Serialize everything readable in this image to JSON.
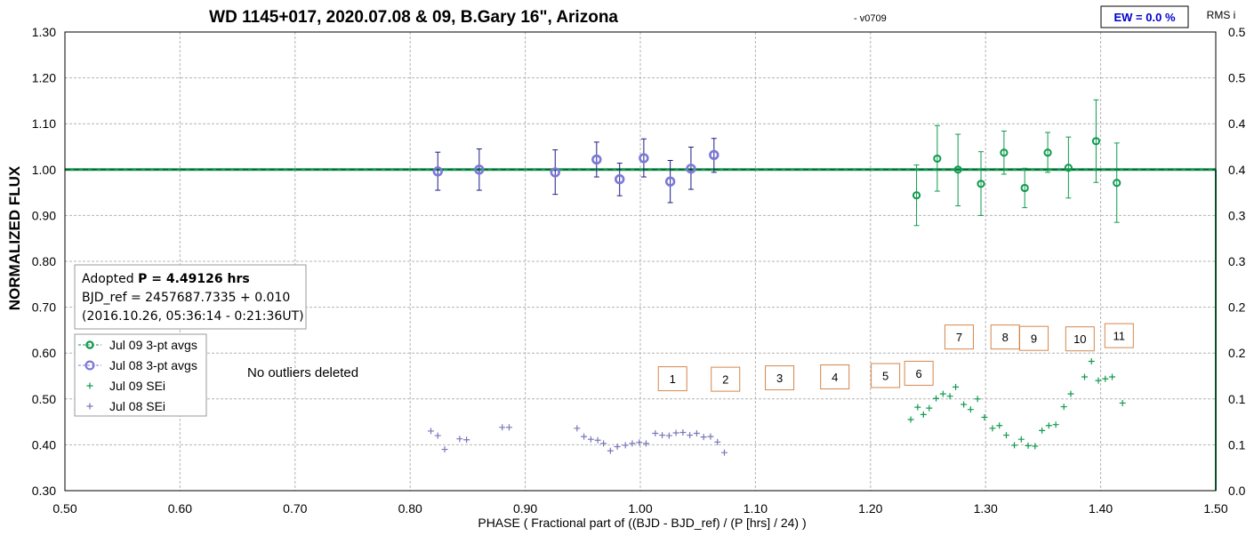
{
  "chart_data": {
    "type": "scatter",
    "title": "WD 1145+017, 2020.07.08 & 09, B.Gary 16\", Arizona",
    "version": "- v0709",
    "xlabel": "PHASE ( Fractional part of ((BJD - BJD_ref) / (P [hrs] / 24) )",
    "ylabel": "NORMALIZED FLUX",
    "y2label": "RMS i",
    "xlim": [
      0.5,
      1.5
    ],
    "ylim": [
      0.3,
      1.3
    ],
    "y2lim": [
      0.0,
      0.5
    ],
    "xticks": [
      "0.50",
      "0.60",
      "0.70",
      "0.80",
      "0.90",
      "1.00",
      "1.10",
      "1.20",
      "1.30",
      "1.40",
      "1.50"
    ],
    "yticks": [
      "0.30",
      "0.40",
      "0.50",
      "0.60",
      "0.70",
      "0.80",
      "0.90",
      "1.00",
      "1.10",
      "1.20",
      "1.30"
    ],
    "y2ticks": [
      "0.0",
      "0.1",
      "0.1",
      "0.2",
      "0.2",
      "0.3",
      "0.3",
      "0.4",
      "0.4",
      "0.5",
      "0.5"
    ],
    "grid": true,
    "legend_position": "left",
    "ew_label": "EW = 0.0 %",
    "info_box": {
      "line1_prefix": "Adopted ",
      "line1_bold": "P = 4.49126 hrs",
      "line2": "BJD_ref = 2457687.7335 + 0.010",
      "line3": "(2016.10.26, 05:36:14 - 0:21:36UT)"
    },
    "note": "No outliers deleted",
    "reference_line": 1.0,
    "colors": {
      "jul09": "#109a4e",
      "jul08_avg": "#7b78d8",
      "jul08_err": "#1c1c84",
      "jul08_sei": "#7777bb",
      "box_border": "#d4864a"
    },
    "series": [
      {
        "name": "Jul 09 3-pt avgs",
        "kind": "avg",
        "points": [
          {
            "x": 1.24,
            "y": 0.944,
            "lo": 0.878,
            "hi": 1.01
          },
          {
            "x": 1.258,
            "y": 1.024,
            "lo": 0.953,
            "hi": 1.096
          },
          {
            "x": 1.276,
            "y": 1.0,
            "lo": 0.921,
            "hi": 1.077
          },
          {
            "x": 1.296,
            "y": 0.969,
            "lo": 0.9,
            "hi": 1.039
          },
          {
            "x": 1.316,
            "y": 1.037,
            "lo": 0.99,
            "hi": 1.084
          },
          {
            "x": 1.334,
            "y": 0.96,
            "lo": 0.917,
            "hi": 1.003
          },
          {
            "x": 1.354,
            "y": 1.037,
            "lo": 0.994,
            "hi": 1.081
          },
          {
            "x": 1.372,
            "y": 1.004,
            "lo": 0.938,
            "hi": 1.071
          },
          {
            "x": 1.396,
            "y": 1.062,
            "lo": 0.972,
            "hi": 1.152
          },
          {
            "x": 1.414,
            "y": 0.971,
            "lo": 0.885,
            "hi": 1.058
          }
        ]
      },
      {
        "name": "Jul 08 3-pt avgs",
        "kind": "avg",
        "points": [
          {
            "x": 0.824,
            "y": 0.996,
            "lo": 0.955,
            "hi": 1.038
          },
          {
            "x": 0.86,
            "y": 1.0,
            "lo": 0.955,
            "hi": 1.045
          },
          {
            "x": 0.926,
            "y": 0.994,
            "lo": 0.946,
            "hi": 1.043
          },
          {
            "x": 0.962,
            "y": 1.022,
            "lo": 0.984,
            "hi": 1.06
          },
          {
            "x": 0.982,
            "y": 0.979,
            "lo": 0.943,
            "hi": 1.014
          },
          {
            "x": 1.003,
            "y": 1.025,
            "lo": 0.984,
            "hi": 1.067
          },
          {
            "x": 1.026,
            "y": 0.974,
            "lo": 0.928,
            "hi": 1.02
          },
          {
            "x": 1.044,
            "y": 1.002,
            "lo": 0.957,
            "hi": 1.049
          },
          {
            "x": 1.064,
            "y": 1.032,
            "lo": 0.994,
            "hi": 1.068
          }
        ]
      },
      {
        "name": "Jul 09 SEi",
        "kind": "sei",
        "points": [
          {
            "x": 1.235,
            "y": 0.455
          },
          {
            "x": 1.241,
            "y": 0.482
          },
          {
            "x": 1.246,
            "y": 0.466
          },
          {
            "x": 1.251,
            "y": 0.48
          },
          {
            "x": 1.257,
            "y": 0.501
          },
          {
            "x": 1.263,
            "y": 0.511
          },
          {
            "x": 1.269,
            "y": 0.506
          },
          {
            "x": 1.274,
            "y": 0.526
          },
          {
            "x": 1.281,
            "y": 0.488
          },
          {
            "x": 1.287,
            "y": 0.477
          },
          {
            "x": 1.293,
            "y": 0.5
          },
          {
            "x": 1.299,
            "y": 0.46
          },
          {
            "x": 1.306,
            "y": 0.436
          },
          {
            "x": 1.312,
            "y": 0.442
          },
          {
            "x": 1.318,
            "y": 0.421
          },
          {
            "x": 1.325,
            "y": 0.399
          },
          {
            "x": 1.331,
            "y": 0.412
          },
          {
            "x": 1.337,
            "y": 0.398
          },
          {
            "x": 1.343,
            "y": 0.397
          },
          {
            "x": 1.349,
            "y": 0.431
          },
          {
            "x": 1.355,
            "y": 0.442
          },
          {
            "x": 1.361,
            "y": 0.444
          },
          {
            "x": 1.368,
            "y": 0.483
          },
          {
            "x": 1.374,
            "y": 0.511
          },
          {
            "x": 1.386,
            "y": 0.548
          },
          {
            "x": 1.392,
            "y": 0.582
          },
          {
            "x": 1.398,
            "y": 0.54
          },
          {
            "x": 1.404,
            "y": 0.544
          },
          {
            "x": 1.41,
            "y": 0.548
          },
          {
            "x": 1.419,
            "y": 0.491
          }
        ]
      },
      {
        "name": "Jul 08 SEi",
        "kind": "sei",
        "points": [
          {
            "x": 0.818,
            "y": 0.43
          },
          {
            "x": 0.824,
            "y": 0.42
          },
          {
            "x": 0.83,
            "y": 0.39
          },
          {
            "x": 0.843,
            "y": 0.413
          },
          {
            "x": 0.849,
            "y": 0.411
          },
          {
            "x": 0.88,
            "y": 0.438
          },
          {
            "x": 0.886,
            "y": 0.438
          },
          {
            "x": 0.945,
            "y": 0.436
          },
          {
            "x": 0.951,
            "y": 0.418
          },
          {
            "x": 0.957,
            "y": 0.412
          },
          {
            "x": 0.963,
            "y": 0.41
          },
          {
            "x": 0.968,
            "y": 0.403
          },
          {
            "x": 0.974,
            "y": 0.387
          },
          {
            "x": 0.98,
            "y": 0.396
          },
          {
            "x": 0.987,
            "y": 0.399
          },
          {
            "x": 0.993,
            "y": 0.403
          },
          {
            "x": 0.999,
            "y": 0.405
          },
          {
            "x": 1.005,
            "y": 0.403
          },
          {
            "x": 1.013,
            "y": 0.425
          },
          {
            "x": 1.019,
            "y": 0.421
          },
          {
            "x": 1.025,
            "y": 0.42
          },
          {
            "x": 1.031,
            "y": 0.426
          },
          {
            "x": 1.037,
            "y": 0.427
          },
          {
            "x": 1.043,
            "y": 0.421
          },
          {
            "x": 1.049,
            "y": 0.425
          },
          {
            "x": 1.055,
            "y": 0.417
          },
          {
            "x": 1.061,
            "y": 0.418
          },
          {
            "x": 1.067,
            "y": 0.406
          },
          {
            "x": 1.073,
            "y": 0.383
          }
        ]
      }
    ],
    "markers": [
      {
        "label": "1",
        "x": 1.028,
        "y": 0.544
      },
      {
        "label": "2",
        "x": 1.074,
        "y": 0.543
      },
      {
        "label": "3",
        "x": 1.121,
        "y": 0.546
      },
      {
        "label": "4",
        "x": 1.169,
        "y": 0.548
      },
      {
        "label": "5",
        "x": 1.213,
        "y": 0.551
      },
      {
        "label": "6",
        "x": 1.242,
        "y": 0.556
      },
      {
        "label": "7",
        "x": 1.277,
        "y": 0.635
      },
      {
        "label": "8",
        "x": 1.317,
        "y": 0.635
      },
      {
        "label": "9",
        "x": 1.342,
        "y": 0.632
      },
      {
        "label": "10",
        "x": 1.382,
        "y": 0.631
      },
      {
        "label": "11",
        "x": 1.416,
        "y": 0.638
      }
    ]
  }
}
